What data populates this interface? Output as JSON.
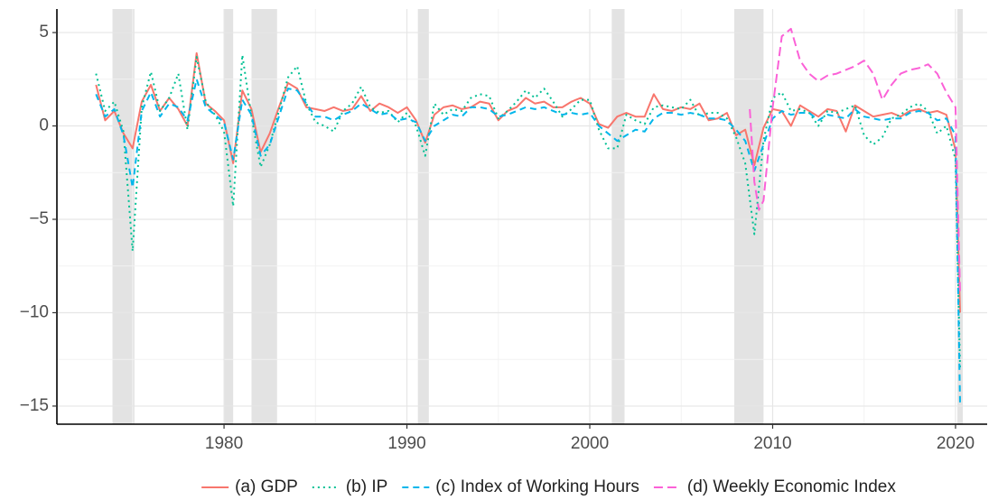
{
  "chart_data": {
    "type": "line",
    "xlim": [
      1970.86,
      2021.73
    ],
    "ylim": [
      -15.97,
      6.26
    ],
    "xticks": [
      1980,
      1990,
      2000,
      2010,
      2020
    ],
    "yticks": [
      {
        "value": 5,
        "label": "5"
      },
      0,
      {
        "value": -5,
        "label": "−5"
      },
      {
        "value": -10,
        "label": "−10"
      },
      {
        "value": -15,
        "label": "−15"
      }
    ],
    "minor_xticks": [
      1975,
      1985,
      1995,
      2005,
      2015
    ],
    "minor_yticks": [
      2.5,
      -2.5,
      -7.5,
      -12.5
    ],
    "grid": true,
    "legend": "bottom",
    "shaded_periods": [
      [
        1973.9,
        1975.1
      ],
      [
        1980.0,
        1980.5
      ],
      [
        1981.5,
        1982.9
      ],
      [
        1990.6,
        1991.2
      ],
      [
        2001.2,
        2001.9
      ],
      [
        2007.9,
        2009.5
      ],
      [
        2020.1,
        2020.4
      ]
    ],
    "shade_color": "#e3e3e3",
    "x": [
      1973.0,
      1973.5,
      1974.0,
      1974.5,
      1975.0,
      1975.5,
      1976.0,
      1976.5,
      1977.0,
      1977.5,
      1978.0,
      1978.5,
      1979.0,
      1979.5,
      1980.0,
      1980.5,
      1981.0,
      1981.5,
      1982.0,
      1982.5,
      1983.0,
      1983.5,
      1984.0,
      1984.5,
      1985.0,
      1985.5,
      1986.0,
      1986.5,
      1987.0,
      1987.5,
      1988.0,
      1988.5,
      1989.0,
      1989.5,
      1990.0,
      1990.5,
      1991.0,
      1991.5,
      1992.0,
      1992.5,
      1993.0,
      1993.5,
      1994.0,
      1994.5,
      1995.0,
      1995.5,
      1996.0,
      1996.5,
      1997.0,
      1997.5,
      1998.0,
      1998.5,
      1999.0,
      1999.5,
      2000.0,
      2000.5,
      2001.0,
      2001.5,
      2002.0,
      2002.5,
      2003.0,
      2003.5,
      2004.0,
      2004.5,
      2005.0,
      2005.5,
      2006.0,
      2006.5,
      2007.0,
      2007.5,
      2008.0,
      2008.5,
      2009.0,
      2009.5,
      2010.0,
      2010.5,
      2011.0,
      2011.5,
      2012.0,
      2012.5,
      2013.0,
      2013.5,
      2014.0,
      2014.5,
      2015.0,
      2015.5,
      2016.0,
      2016.5,
      2017.0,
      2017.5,
      2018.0,
      2018.5,
      2019.0,
      2019.5,
      2020.0,
      2020.25
    ],
    "series": [
      {
        "name": "(a) GDP",
        "color": "#F8766D",
        "dash": "solid",
        "values": [
          2.2,
          0.3,
          0.8,
          -0.4,
          -1.2,
          1.3,
          2.2,
          0.8,
          1.5,
          0.9,
          0.0,
          3.9,
          1.2,
          0.8,
          0.3,
          -2.0,
          1.9,
          0.9,
          -1.4,
          -0.4,
          1.0,
          2.3,
          2.0,
          1.0,
          0.9,
          0.8,
          1.0,
          0.8,
          0.9,
          1.6,
          0.8,
          1.2,
          1.0,
          0.7,
          1.0,
          0.3,
          -0.9,
          0.6,
          1.0,
          1.1,
          0.9,
          1.0,
          1.3,
          1.2,
          0.3,
          0.8,
          1.0,
          1.5,
          1.2,
          1.3,
          1.0,
          1.0,
          1.3,
          1.5,
          1.2,
          0.1,
          -0.1,
          0.5,
          0.7,
          0.5,
          0.5,
          1.7,
          0.9,
          0.8,
          1.0,
          0.9,
          1.2,
          0.3,
          0.4,
          0.7,
          -0.5,
          -0.2,
          -2.1,
          -0.1,
          0.9,
          0.8,
          0.0,
          1.1,
          0.8,
          0.5,
          0.9,
          0.8,
          -0.3,
          1.1,
          0.8,
          0.5,
          0.6,
          0.7,
          0.5,
          0.8,
          0.9,
          0.7,
          0.8,
          0.6,
          -1.3,
          -10.0
        ]
      },
      {
        "name": "(b) IP",
        "color": "#00C094",
        "dash": "dotted",
        "values": [
          2.8,
          0.8,
          1.3,
          -0.3,
          -6.7,
          1.0,
          2.9,
          0.8,
          1.5,
          2.8,
          -0.2,
          3.7,
          1.3,
          0.6,
          -0.3,
          -4.3,
          3.8,
          0.5,
          -2.2,
          -1.0,
          0.8,
          2.6,
          3.2,
          1.2,
          0.2,
          0.0,
          -0.3,
          0.8,
          1.2,
          2.1,
          1.0,
          0.7,
          0.8,
          0.2,
          0.7,
          0.0,
          -1.6,
          1.2,
          0.6,
          0.9,
          0.8,
          1.5,
          1.7,
          1.6,
          0.4,
          0.8,
          1.3,
          1.9,
          1.5,
          2.0,
          1.3,
          0.5,
          0.9,
          1.4,
          1.4,
          -0.2,
          -1.2,
          -1.2,
          0.6,
          0.3,
          0.1,
          1.0,
          1.1,
          1.0,
          0.9,
          1.4,
          0.5,
          0.7,
          0.7,
          0.4,
          -0.6,
          -2.0,
          -5.8,
          -0.8,
          1.5,
          1.8,
          0.8,
          0.9,
          0.7,
          0.0,
          0.8,
          0.7,
          0.9,
          1.1,
          -0.5,
          -1.0,
          -0.6,
          0.4,
          0.6,
          1.0,
          1.2,
          0.8,
          -0.4,
          0.0,
          -1.8,
          -13.0
        ]
      },
      {
        "name": "(c) Index of Working Hours",
        "color": "#00B6EB",
        "dash": "dashed",
        "values": [
          1.7,
          0.5,
          0.9,
          -0.5,
          -3.3,
          0.8,
          1.8,
          0.5,
          1.2,
          1.0,
          0.3,
          2.5,
          1.0,
          0.6,
          0.2,
          -1.8,
          1.4,
          0.6,
          -1.6,
          -1.0,
          0.5,
          2.0,
          1.9,
          1.2,
          0.5,
          0.5,
          0.3,
          0.6,
          0.8,
          1.2,
          0.9,
          0.6,
          0.7,
          0.3,
          0.4,
          0.2,
          -0.8,
          0.0,
          0.3,
          0.6,
          0.5,
          1.0,
          1.0,
          0.9,
          0.5,
          0.6,
          0.8,
          1.0,
          0.9,
          1.0,
          0.8,
          0.6,
          0.7,
          0.6,
          0.7,
          0.0,
          -0.4,
          -0.8,
          -0.5,
          -0.2,
          -0.3,
          0.4,
          0.7,
          0.7,
          0.6,
          0.7,
          0.6,
          0.4,
          0.4,
          0.3,
          -0.2,
          -0.8,
          -2.4,
          -1.0,
          0.4,
          0.8,
          0.6,
          0.7,
          0.7,
          0.3,
          0.6,
          0.5,
          0.4,
          0.9,
          0.5,
          0.4,
          0.3,
          0.4,
          0.4,
          0.7,
          0.8,
          0.7,
          0.3,
          0.4,
          -0.5,
          -15.0
        ]
      },
      {
        "name": "(d) Weekly Economic Index",
        "color": "#FB61D7",
        "dash": "longdash",
        "x": [
          2008.75,
          2009.0,
          2009.25,
          2009.5,
          2010.0,
          2010.5,
          2011.0,
          2011.5,
          2012.0,
          2012.5,
          2013.0,
          2013.5,
          2014.0,
          2014.5,
          2015.0,
          2015.5,
          2016.0,
          2016.5,
          2017.0,
          2017.5,
          2018.0,
          2018.5,
          2019.0,
          2019.5,
          2020.0,
          2020.25
        ],
        "values": [
          0.9,
          -3.0,
          -4.5,
          -4.0,
          1.0,
          4.8,
          5.2,
          3.5,
          2.8,
          2.4,
          2.7,
          2.8,
          3.0,
          3.2,
          3.5,
          2.8,
          1.4,
          2.2,
          2.8,
          3.0,
          3.1,
          3.3,
          2.8,
          1.8,
          1.0,
          -9.0
        ]
      }
    ]
  }
}
